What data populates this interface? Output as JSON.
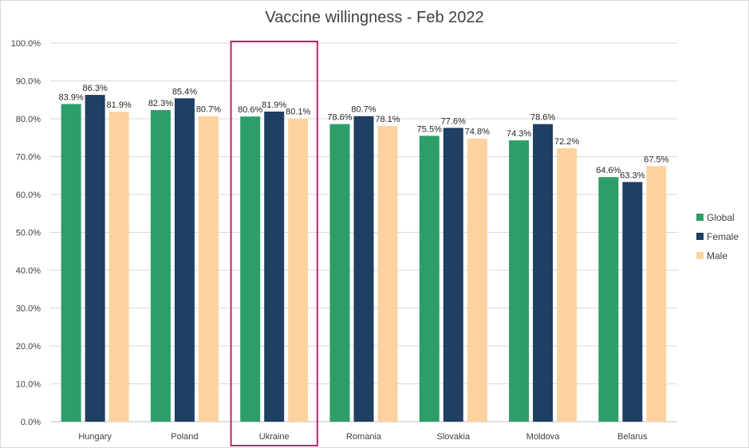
{
  "chart_data": {
    "type": "bar",
    "title": "Vaccine willingness - Feb 2022",
    "xlabel": "",
    "ylabel": "",
    "ylim": [
      0,
      100
    ],
    "y_ticks": [
      0,
      10,
      20,
      30,
      40,
      50,
      60,
      70,
      80,
      90,
      100
    ],
    "y_tick_format": "percent_1dp",
    "grid": true,
    "legend_position": "right",
    "categories": [
      "Hungary",
      "Poland",
      "Ukraine",
      "Romania",
      "Slovakia",
      "Moldova",
      "Belarus"
    ],
    "series": [
      {
        "name": "Global",
        "color": "#2e9e68",
        "values": [
          83.9,
          82.3,
          80.6,
          78.6,
          75.5,
          74.3,
          64.6
        ]
      },
      {
        "name": "Female",
        "color": "#1f3f63",
        "values": [
          86.3,
          85.4,
          81.9,
          80.7,
          77.6,
          78.6,
          63.3
        ]
      },
      {
        "name": "Male",
        "color": "#fdd2a1",
        "values": [
          81.9,
          80.7,
          80.1,
          78.1,
          74.8,
          72.2,
          67.5
        ]
      }
    ],
    "highlight": {
      "category": "Ukraine",
      "color": "#c81e6e"
    }
  }
}
